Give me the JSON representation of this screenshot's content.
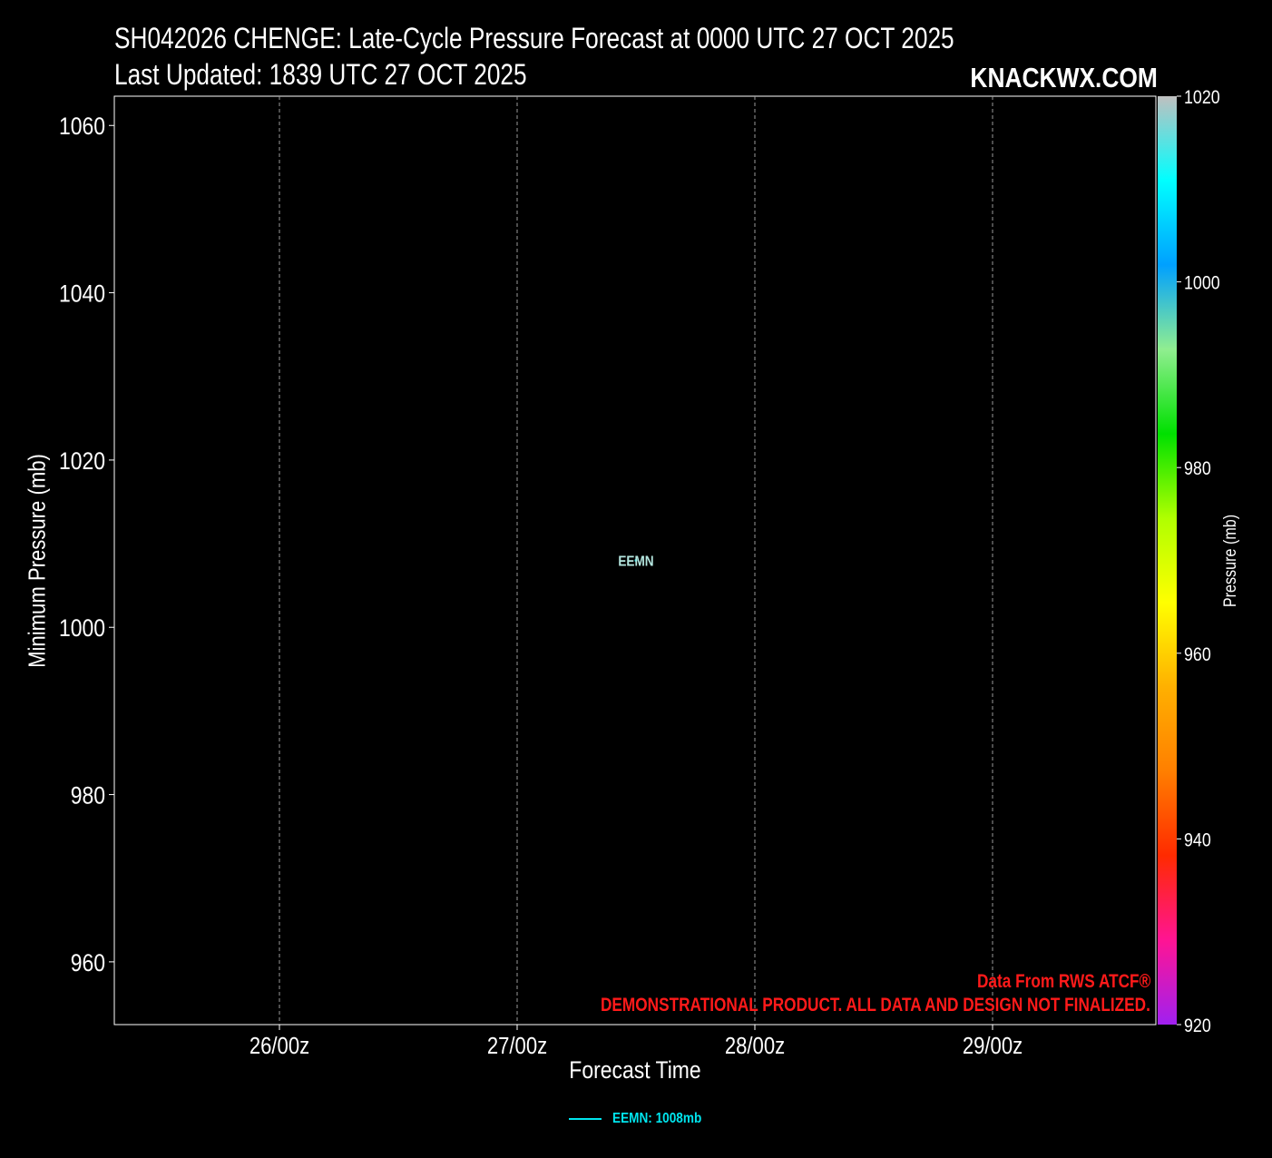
{
  "header": {
    "title": "SH042026 CHENGE: Late-Cycle Pressure Forecast at 0000 UTC 27 OCT 2025",
    "subtitle": "Last Updated: 1839 UTC 27 OCT 2025",
    "brand": "KNACKWX.COM"
  },
  "notes": {
    "source": "Data From RWS ATCF®",
    "disclaimer": "DEMONSTRATIONAL PRODUCT. ALL DATA AND DESIGN NOT FINALIZED."
  },
  "chart_data": {
    "type": "line",
    "xlabel": "Forecast Time",
    "ylabel": "Minimum Pressure (mb)",
    "x_ticks": [
      "26/00z",
      "27/00z",
      "28/00z",
      "29/00z"
    ],
    "y_ticks": [
      960,
      980,
      1000,
      1020,
      1040,
      1060
    ],
    "ylim": [
      952.5,
      1063.5
    ],
    "grid": "vertical dashed at x ticks",
    "series": [
      {
        "name": "EEMN",
        "label": "EEMN",
        "color": "#00e5ee",
        "points": [
          {
            "x": "27/12z",
            "y": 1008
          }
        ]
      }
    ],
    "legend": {
      "placement": "bottom-center",
      "entries": [
        "EEMN: 1008mb"
      ]
    },
    "colorbar": {
      "label": "Pressure (mb)",
      "range": [
        920,
        1020
      ],
      "ticks": [
        920,
        940,
        960,
        980,
        1000,
        1020
      ],
      "colors": [
        "#a020f0",
        "#ff1493",
        "#ff2a00",
        "#ff7f00",
        "#ffb000",
        "#ffff00",
        "#b0ff00",
        "#00e000",
        "#90ee90",
        "#00a0ff",
        "#00ffff",
        "#c0c0c0"
      ]
    }
  }
}
